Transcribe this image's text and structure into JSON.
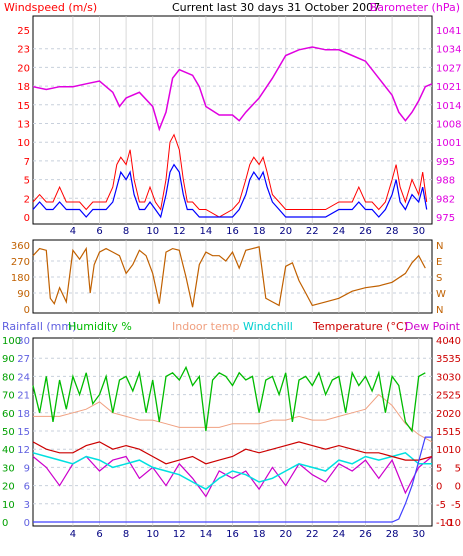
{
  "header": {
    "left_label": "Windspeed (m/s)",
    "center_title": "Current last 30 days 31 October 2007",
    "right_label": "Barometer (hPa)"
  },
  "legend2": {
    "rainfall": "Rainfall (mm)",
    "humidity": "Humidity %",
    "indoor": "Indoor temp",
    "windchill": "Windchill",
    "temperature": "Temperature (°C)",
    "dewpoint": "Dew Point"
  },
  "colors": {
    "wind_gust": "#ff0000",
    "wind_avg": "#0000ff",
    "barometer": "#e000e0",
    "direction": "#c06000",
    "rain": "#4040ff",
    "humidity": "#00bb00",
    "indoor": "#f0a080",
    "windchill": "#00e0e0",
    "temperature": "#cc0000",
    "dewpoint": "#cc00cc",
    "rain_axis": "#6060e0",
    "humidity_axis": "#00a000",
    "temp_axis": "#cc0000"
  },
  "chart_data": [
    {
      "type": "line",
      "x_ticks": [
        4,
        6,
        8,
        10,
        12,
        14,
        16,
        18,
        20,
        22,
        24,
        26,
        28,
        30
      ],
      "xlim": [
        1,
        31
      ],
      "left_axis": {
        "label": "Windspeed (m/s)",
        "ylim": [
          0,
          25
        ],
        "ticks": [
          "0",
          "2",
          "5",
          "7",
          "10",
          "13",
          "15",
          "18",
          "20",
          "23",
          "25"
        ]
      },
      "right_axis": {
        "label": "Barometer (hPa)",
        "ylim": [
          975,
          1041
        ],
        "ticks": [
          "975",
          "982",
          "988",
          "995",
          "1001",
          "1008",
          "1014",
          "1021",
          "1027",
          "1034",
          "1041"
        ]
      },
      "series": [
        {
          "name": "Windspeed (m/s)",
          "x": [
            1.0,
            1.5,
            2.0,
            2.5,
            3.0,
            3.5,
            4.0,
            4.5,
            5.0,
            5.5,
            6.0,
            6.5,
            7.0,
            7.3,
            7.6,
            8.0,
            8.3,
            8.6,
            9.0,
            9.4,
            9.8,
            10.2,
            10.6,
            11.0,
            11.3,
            11.6,
            12.0,
            12.3,
            12.6,
            13.0,
            13.5,
            14.0,
            15.0,
            16.0,
            16.5,
            17.0,
            17.3,
            17.6,
            18.0,
            18.3,
            18.6,
            19.0,
            19.5,
            20.0,
            21.0,
            22.0,
            23.0,
            24.0,
            25.0,
            25.5,
            26.0,
            26.5,
            27.0,
            27.5,
            28.0,
            28.3,
            28.6,
            29.0,
            29.5,
            30.0,
            30.3,
            30.6
          ],
          "values": [
            1,
            2,
            1,
            1,
            2,
            1,
            1,
            1,
            0,
            1,
            1,
            1,
            2,
            4,
            6,
            5,
            6,
            3,
            1,
            1,
            2,
            1,
            0,
            3,
            6,
            7,
            6,
            3,
            1,
            1,
            0,
            0,
            0,
            0,
            1,
            3,
            5,
            6,
            5,
            6,
            4,
            2,
            1,
            0,
            0,
            0,
            0,
            1,
            1,
            2,
            1,
            1,
            0,
            1,
            3,
            5,
            2,
            1,
            3,
            2,
            4,
            1
          ]
        },
        {
          "name": "Wind gust",
          "x": [
            1.0,
            1.5,
            2.0,
            2.5,
            3.0,
            3.5,
            4.0,
            4.5,
            5.0,
            5.5,
            6.0,
            6.5,
            7.0,
            7.3,
            7.6,
            8.0,
            8.3,
            8.6,
            9.0,
            9.4,
            9.8,
            10.2,
            10.6,
            11.0,
            11.3,
            11.6,
            12.0,
            12.3,
            12.6,
            13.0,
            13.5,
            14.0,
            15.0,
            16.0,
            16.5,
            17.0,
            17.3,
            17.6,
            18.0,
            18.3,
            18.6,
            19.0,
            19.5,
            20.0,
            21.0,
            22.0,
            23.0,
            24.0,
            25.0,
            25.5,
            26.0,
            26.5,
            27.0,
            27.5,
            28.0,
            28.3,
            28.6,
            29.0,
            29.5,
            30.0,
            30.3,
            30.6
          ],
          "values": [
            2,
            3,
            2,
            2,
            4,
            2,
            2,
            2,
            1,
            2,
            2,
            2,
            4,
            7,
            8,
            7,
            9,
            5,
            2,
            2,
            4,
            2,
            1,
            5,
            10,
            11,
            9,
            5,
            2,
            2,
            1,
            1,
            0,
            1,
            2,
            5,
            7,
            8,
            7,
            8,
            6,
            3,
            2,
            1,
            1,
            1,
            1,
            2,
            2,
            4,
            2,
            2,
            1,
            2,
            5,
            7,
            4,
            2,
            5,
            3,
            6,
            2
          ]
        },
        {
          "name": "Barometer (hPa)",
          "x": [
            1,
            2,
            3,
            4,
            5,
            6,
            7,
            7.5,
            8,
            9,
            10,
            10.5,
            11,
            11.5,
            12,
            13,
            13.5,
            14,
            15,
            16,
            16.5,
            17,
            18,
            19,
            20,
            21,
            22,
            23,
            24,
            25,
            26,
            27,
            28,
            28.5,
            29,
            29.5,
            30,
            30.5,
            31
          ],
          "values": [
            1021,
            1020,
            1021,
            1021,
            1022,
            1023,
            1019,
            1014,
            1017,
            1019,
            1014,
            1006,
            1012,
            1024,
            1027,
            1025,
            1021,
            1014,
            1011,
            1011,
            1009,
            1012,
            1017,
            1024,
            1032,
            1034,
            1035,
            1034,
            1034,
            1032,
            1030,
            1024,
            1018,
            1012,
            1009,
            1012,
            1016,
            1021,
            1022
          ]
        }
      ]
    },
    {
      "type": "line",
      "x_ticks": [
        4,
        6,
        8,
        10,
        12,
        14,
        16,
        18,
        20,
        22,
        24,
        26,
        28,
        30
      ],
      "xlim": [
        1,
        31
      ],
      "left_axis": {
        "ylim": [
          0,
          360
        ],
        "ticks": [
          "0",
          "90",
          "180",
          "270",
          "360"
        ]
      },
      "right_axis": {
        "ticks": [
          "N",
          "W",
          "S",
          "E",
          "N"
        ]
      },
      "series": [
        {
          "name": "Wind direction",
          "x": [
            1.0,
            1.5,
            2.0,
            2.3,
            2.6,
            3.0,
            3.5,
            4.0,
            4.5,
            5.0,
            5.3,
            5.6,
            6.0,
            6.5,
            7.0,
            7.5,
            8.0,
            8.5,
            9.0,
            9.5,
            10.0,
            10.5,
            11.0,
            11.5,
            12.0,
            12.5,
            13.0,
            13.5,
            14.0,
            14.5,
            15.0,
            15.5,
            16.0,
            16.5,
            17.0,
            17.5,
            18.0,
            18.5,
            19.0,
            19.5,
            20.0,
            20.5,
            21.0,
            21.5,
            22.0,
            23.0,
            24.0,
            25.0,
            26.0,
            27.0,
            28.0,
            29.0,
            29.5,
            30.0,
            30.5
          ],
          "values": [
            300,
            340,
            330,
            60,
            30,
            120,
            40,
            330,
            280,
            340,
            90,
            250,
            320,
            340,
            320,
            300,
            200,
            250,
            330,
            300,
            200,
            30,
            320,
            340,
            330,
            180,
            10,
            250,
            320,
            300,
            300,
            270,
            320,
            230,
            330,
            340,
            350,
            60,
            40,
            20,
            240,
            260,
            160,
            90,
            20,
            40,
            60,
            100,
            120,
            130,
            150,
            200,
            260,
            300,
            230
          ]
        }
      ]
    },
    {
      "type": "line",
      "x_ticks": [
        4,
        6,
        8,
        10,
        12,
        14,
        16,
        18,
        20,
        22,
        24,
        26,
        28,
        30
      ],
      "xlim": [
        1,
        31
      ],
      "rain_axis": {
        "ylim": [
          0,
          30
        ],
        "ticks": [
          "0",
          "3",
          "6",
          "9",
          "12",
          "15",
          "18",
          "21",
          "24",
          "27",
          "30"
        ]
      },
      "humidity_axis": {
        "ylim": [
          0,
          100
        ],
        "ticks": [
          "0",
          "10",
          "20",
          "30",
          "40",
          "50",
          "60",
          "70",
          "80",
          "90",
          "100"
        ]
      },
      "temp_axis_left": {
        "ylim": [
          -10,
          40
        ],
        "ticks": [
          "-10",
          "-5",
          "0",
          "5",
          "10",
          "15",
          "20",
          "25",
          "30",
          "35",
          "40"
        ]
      },
      "temp_axis_right": {
        "ylim": [
          -10,
          40
        ],
        "ticks": [
          "-10",
          "-5",
          "0",
          "5",
          "10",
          "15",
          "20",
          "25",
          "30",
          "35",
          "40"
        ]
      },
      "series": [
        {
          "name": "Rainfall (mm)",
          "x": [
            1,
            28.0,
            28.5,
            29.0,
            29.5,
            30.0,
            30.5,
            31
          ],
          "values": [
            0,
            0,
            0.5,
            3,
            6,
            10,
            14,
            14
          ]
        },
        {
          "name": "Humidity %",
          "x": [
            1.0,
            1.5,
            2.0,
            2.5,
            3.0,
            3.5,
            4.0,
            4.5,
            5.0,
            5.5,
            6.0,
            6.5,
            7.0,
            7.5,
            8.0,
            8.5,
            9.0,
            9.5,
            10.0,
            10.5,
            11.0,
            11.5,
            12.0,
            12.5,
            13.0,
            13.5,
            14.0,
            14.5,
            15.0,
            15.5,
            16.0,
            16.5,
            17.0,
            17.5,
            18.0,
            18.5,
            19.0,
            19.5,
            20.0,
            20.5,
            21.0,
            21.5,
            22.0,
            22.5,
            23.0,
            23.5,
            24.0,
            24.5,
            25.0,
            25.5,
            26.0,
            26.5,
            27.0,
            27.5,
            28.0,
            28.5,
            29.0,
            29.5,
            30.0,
            30.5
          ],
          "values": [
            75,
            60,
            80,
            55,
            78,
            62,
            80,
            70,
            82,
            65,
            70,
            80,
            60,
            78,
            80,
            72,
            82,
            60,
            78,
            55,
            80,
            82,
            78,
            85,
            75,
            80,
            50,
            78,
            82,
            80,
            75,
            82,
            78,
            80,
            60,
            78,
            80,
            70,
            82,
            55,
            78,
            80,
            75,
            82,
            70,
            78,
            80,
            60,
            82,
            75,
            80,
            72,
            82,
            60,
            80,
            75,
            55,
            50,
            80,
            82
          ]
        },
        {
          "name": "Indoor temp",
          "x": [
            1,
            2,
            3,
            4,
            5,
            6,
            7,
            8,
            9,
            10,
            11,
            12,
            13,
            14,
            15,
            16,
            17,
            18,
            19,
            20,
            21,
            22,
            23,
            24,
            25,
            26,
            27,
            28,
            29,
            30,
            31
          ],
          "values": [
            19,
            19,
            19,
            20,
            21,
            23,
            20,
            19,
            18,
            18,
            17,
            16,
            16,
            16,
            16,
            17,
            17,
            17,
            18,
            18,
            19,
            18,
            18,
            19,
            20,
            21,
            25,
            22,
            17,
            14,
            12
          ]
        },
        {
          "name": "Windchill",
          "x": [
            1,
            2,
            3,
            4,
            5,
            6,
            7,
            8,
            9,
            10,
            11,
            12,
            13,
            14,
            15,
            16,
            17,
            18,
            19,
            20,
            21,
            22,
            23,
            24,
            25,
            26,
            27,
            28,
            29,
            30,
            31
          ],
          "values": [
            9,
            8,
            7,
            6,
            8,
            7,
            5,
            6,
            7,
            5,
            4,
            3,
            1,
            -1,
            2,
            4,
            3,
            1,
            2,
            4,
            6,
            5,
            4,
            7,
            6,
            8,
            7,
            8,
            9,
            6,
            6
          ]
        },
        {
          "name": "Temperature (°C)",
          "x": [
            1,
            2,
            3,
            4,
            5,
            6,
            7,
            8,
            9,
            10,
            11,
            12,
            13,
            14,
            15,
            16,
            17,
            18,
            19,
            20,
            21,
            22,
            23,
            24,
            25,
            26,
            27,
            28,
            29,
            30,
            31
          ],
          "values": [
            12,
            10,
            9,
            9,
            11,
            12,
            10,
            11,
            10,
            8,
            6,
            7,
            8,
            6,
            7,
            8,
            10,
            9,
            10,
            11,
            12,
            11,
            10,
            11,
            10,
            9,
            9,
            8,
            7,
            7,
            8
          ]
        },
        {
          "name": "Dew Point",
          "x": [
            1,
            2,
            3,
            4,
            5,
            6,
            7,
            8,
            9,
            10,
            11,
            12,
            13,
            14,
            15,
            16,
            17,
            18,
            19,
            20,
            21,
            22,
            23,
            24,
            25,
            26,
            27,
            28,
            29,
            30,
            31
          ],
          "values": [
            8,
            5,
            0,
            6,
            8,
            4,
            7,
            8,
            2,
            5,
            0,
            6,
            2,
            -3,
            4,
            2,
            4,
            -1,
            5,
            0,
            6,
            3,
            1,
            6,
            4,
            7,
            2,
            7,
            -2,
            5,
            8
          ]
        }
      ]
    }
  ]
}
